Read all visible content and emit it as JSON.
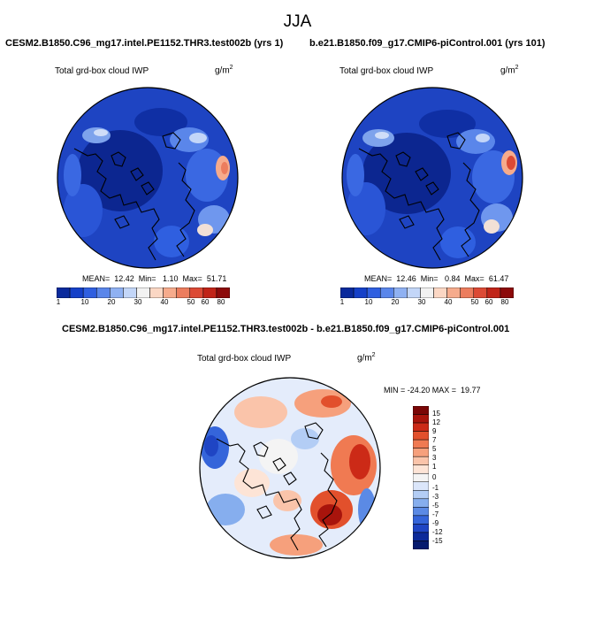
{
  "figure": {
    "season": "JJA"
  },
  "panel_left": {
    "case_title": "CESM2.B1850.C96_mg17.intel.PE1152.THR3.test002b (yrs 1)",
    "variable": "Total grd-box cloud IWP",
    "units_base": "g/m",
    "units_exp": "2",
    "stats": "MEAN=  12.42  Min=   1.10  Max=  51.71",
    "mean": 12.42,
    "min": 1.1,
    "max": 51.71
  },
  "panel_right": {
    "case_title": "b.e21.B1850.f09_g17.CMIP6-piControl.001 (yrs 101)",
    "variable": "Total grd-box cloud IWP",
    "units_base": "g/m",
    "units_exp": "2",
    "stats": "MEAN=  12.46  Min=   0.84  Max=  61.47",
    "mean": 12.46,
    "min": 0.84,
    "max": 61.47
  },
  "panel_diff": {
    "case_title": "CESM2.B1850.C96_mg17.intel.PE1152.THR3.test002b - b.e21.B1850.f09_g17.CMIP6-piControl.001",
    "variable": "Total grd-box cloud IWP",
    "units_base": "g/m",
    "units_exp": "2",
    "stats": "MIN = -24.20 MAX =  19.77",
    "min": -24.2,
    "max": 19.77
  },
  "abs_colorbar": {
    "labels": [
      "1",
      "10",
      "20",
      "30",
      "40",
      "50",
      "60",
      "80"
    ],
    "colors": [
      "#0a2a9c",
      "#1540c8",
      "#2f5fe0",
      "#5a86ea",
      "#8fb1f2",
      "#c3d6f8",
      "#f2f2f2",
      "#fbd7c4",
      "#f6ab8c",
      "#ec7d5e",
      "#dc4a35",
      "#c02418",
      "#8c0a0a"
    ]
  },
  "diff_colorbar": {
    "labels": [
      "15",
      "12",
      "9",
      "7",
      "5",
      "3",
      "1",
      "0",
      "-1",
      "-3",
      "-5",
      "-7",
      "-9",
      "-12",
      "-15"
    ],
    "colors": [
      "#7a0606",
      "#a8140c",
      "#cc2a17",
      "#e2502c",
      "#f07a52",
      "#f6a07c",
      "#fac4aa",
      "#fde4d6",
      "#f4f4f4",
      "#dbe6fa",
      "#b3cdf5",
      "#86aeee",
      "#5b8ae5",
      "#3565da",
      "#1f45c4",
      "#0d2a9a",
      "#061a6e"
    ]
  },
  "map_colors": {
    "coast": "#000000",
    "abs_background": "#1e44c2",
    "abs_deep": "#0c2690",
    "diff_background": "#e4ecfb"
  }
}
